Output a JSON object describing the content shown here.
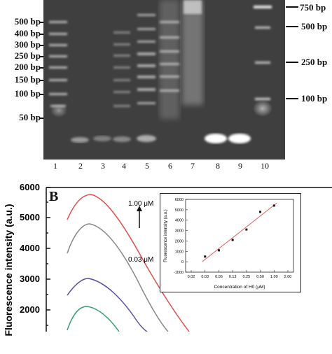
{
  "panel_a": {
    "left_markers": [
      "500 bp",
      "400 bp",
      "300 bp",
      "250 bp",
      "200 bp",
      "150 bp",
      "100 bp",
      "50 bp"
    ],
    "right_markers": [
      "750 bp",
      "500 bp",
      "250 bp",
      "100 bp"
    ],
    "lanes": [
      "1",
      "2",
      "3",
      "4",
      "5",
      "6",
      "7",
      "8",
      "9",
      "10"
    ]
  },
  "panel_b": {
    "letter": "B",
    "ylabel": "Fluorescence intensity (a.u.)",
    "yticks": [
      "6000",
      "5000",
      "4000",
      "3000",
      "2000"
    ],
    "arrow_top": "1.00 μM",
    "arrow_bottom": "0.03 μM"
  },
  "chart_data": {
    "type": "scatter",
    "xlabel": "Concentration of H0 (μM)",
    "ylabel": "Fluorescence intensity (a.u.)",
    "categories": [
      "0.03",
      "0.06",
      "0.13",
      "0.25",
      "0.50",
      "1.00"
    ],
    "xticks": [
      "0.02",
      "0.03",
      "0.06",
      "0.13",
      "0.25",
      "0.50",
      "1.00",
      "2.00"
    ],
    "yticks": [
      "6000",
      "5000",
      "4000",
      "3000",
      "2000",
      "1000",
      "0",
      "-1000"
    ],
    "ylim": [
      -1000,
      6000
    ],
    "values": [
      500,
      1100,
      2100,
      3100,
      4800,
      5400
    ],
    "fit_line": "red linear fit"
  },
  "colors": {
    "red": "#e05050",
    "gray": "#888888",
    "blue": "#5a4fa0",
    "green": "#3aa070"
  }
}
